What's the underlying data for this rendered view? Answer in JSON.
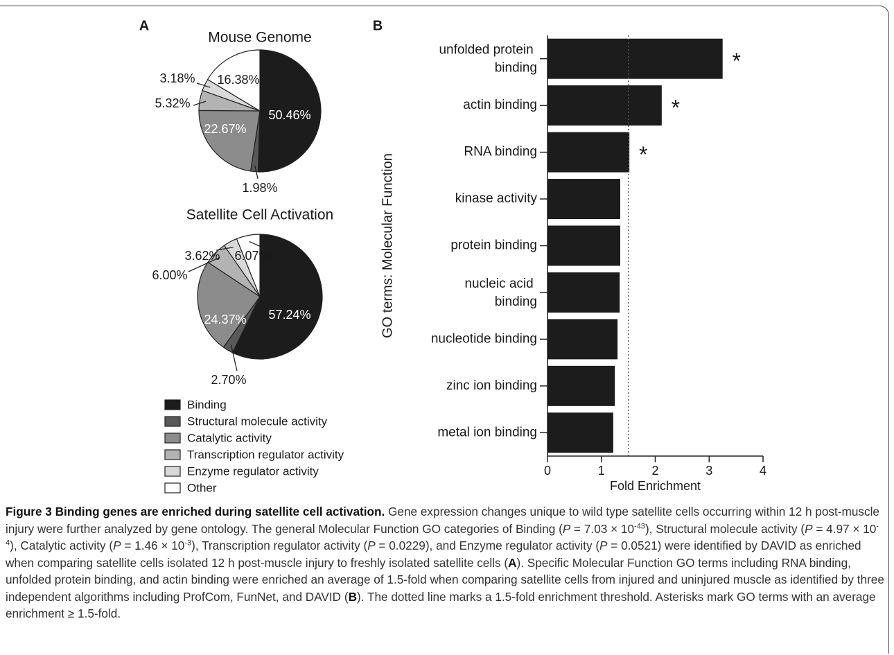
{
  "chart_data": [
    {
      "type": "pie",
      "panel": "A",
      "title": "Mouse Genome",
      "categories": [
        "Binding",
        "Structural molecule activity",
        "Catalytic activity",
        "Transcription regulator activity",
        "Enzyme regulator activity",
        "Other"
      ],
      "colors": [
        "#1c1c1c",
        "#595959",
        "#8c8c8c",
        "#b3b3b3",
        "#d9d9d9",
        "#ffffff"
      ],
      "values": [
        50.46,
        1.98,
        22.67,
        5.32,
        3.18,
        16.38
      ],
      "value_labels": [
        "50.46%",
        "1.98%",
        "22.67%",
        "5.32%",
        "3.18%",
        "16.38%"
      ]
    },
    {
      "type": "pie",
      "title": "Satellite Cell Activation",
      "values": [
        57.24,
        2.7,
        24.37,
        6.0,
        3.62,
        6.07
      ],
      "value_labels": [
        "57.24%",
        "2.70%",
        "24.37%",
        "6.00%",
        "3.62%",
        "6.07%"
      ]
    },
    {
      "type": "bar",
      "panel": "B",
      "orientation": "horizontal",
      "categories": [
        "unfolded protein binding",
        "actin binding",
        "RNA binding",
        "kinase activity",
        "protein binding",
        "nucleic acid binding",
        "nucleotide binding",
        "zinc ion binding",
        "metal ion binding"
      ],
      "values": [
        3.25,
        2.12,
        1.52,
        1.35,
        1.35,
        1.34,
        1.3,
        1.25,
        1.22
      ],
      "color": "#1c1c1c",
      "significant": [
        true,
        true,
        true,
        false,
        false,
        false,
        false,
        false,
        false
      ],
      "annotation": "*",
      "threshold": 1.5,
      "xlim": [
        0,
        4
      ],
      "xticks": [
        0,
        1,
        2,
        3,
        4
      ],
      "xlabel": "Fold Enrichment",
      "ylabel": "GO terms: Molecular Function"
    }
  ],
  "caption": {
    "runs": [
      {
        "text": "Figure 3 Binding genes are enriched during satellite cell activation.",
        "style": "bold"
      },
      {
        "text": " Gene expression changes unique to wild type satellite cells occurring within 12 h post-muscle injury were further analyzed by gene ontology. The general Molecular Function GO categories of Binding ("
      },
      {
        "text": "P",
        "style": "italic"
      },
      {
        "text": " = 7.03 × 10"
      },
      {
        "text": "-43",
        "style": "sup"
      },
      {
        "text": "), Structural molecule activity ("
      },
      {
        "text": "P",
        "style": "italic"
      },
      {
        "text": " = 4.97 × 10"
      },
      {
        "text": "-4",
        "style": "sup"
      },
      {
        "text": "), Catalytic activity ("
      },
      {
        "text": "P",
        "style": "italic"
      },
      {
        "text": " = 1.46 × 10"
      },
      {
        "text": "-3",
        "style": "sup"
      },
      {
        "text": "), Transcription regulator activity ("
      },
      {
        "text": "P",
        "style": "italic"
      },
      {
        "text": " = 0.0229), and Enzyme regulator activity ("
      },
      {
        "text": "P",
        "style": "italic"
      },
      {
        "text": " = 0.0521) were identified by DAVID as enriched when comparing satellite cells isolated 12 h post-muscle injury to freshly isolated satellite cells ("
      },
      {
        "text": "A",
        "style": "bold"
      },
      {
        "text": "). Specific Molecular Function GO terms including RNA binding, unfolded protein binding, and actin binding were enriched an average of 1.5-fold when comparing satellite cells from injured and uninjured muscle as identified by three independent algorithms including ProfCom, FunNet, and DAVID ("
      },
      {
        "text": "B",
        "style": "bold"
      },
      {
        "text": "). The dotted line marks a 1.5-fold enrichment threshold. Asterisks mark GO terms with an average enrichment ≥ 1.5-fold."
      }
    ]
  }
}
